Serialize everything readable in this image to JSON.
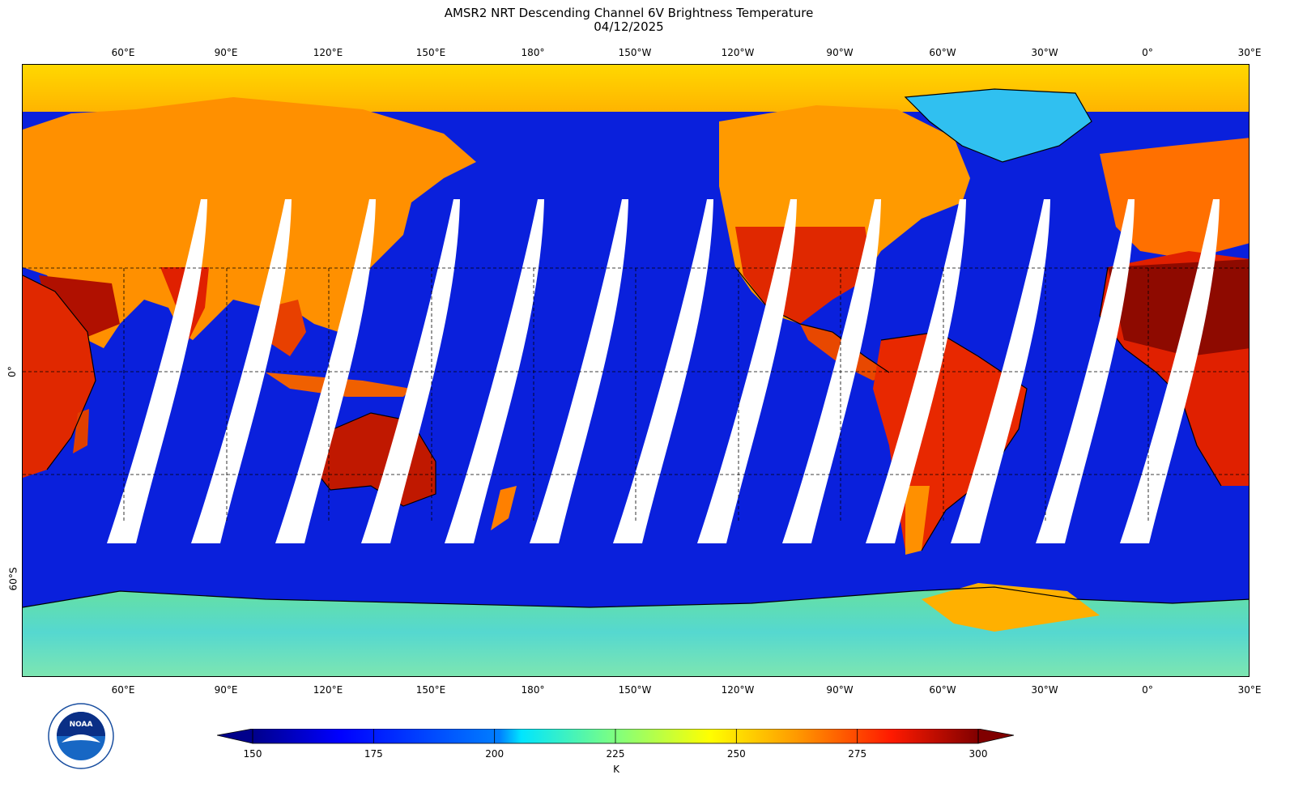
{
  "title": {
    "line1": "AMSR2 NRT Descending Channel 6V Brightness Temperature",
    "line2": "04/12/2025"
  },
  "lon_ticks": [
    "60°E",
    "90°E",
    "120°E",
    "150°E",
    "180°",
    "150°W",
    "120°W",
    "90°W",
    "60°W",
    "30°W",
    "0°",
    "30°E"
  ],
  "lat_ticks": [
    "0°",
    "60°S"
  ],
  "colorbar": {
    "ticks": [
      "150",
      "175",
      "200",
      "225",
      "250",
      "275",
      "300"
    ],
    "unit": "K",
    "min": 150,
    "max": 300,
    "colors": [
      "#00008b",
      "#0000ff",
      "#007fff",
      "#00ffff",
      "#7fff7f",
      "#ffff00",
      "#ff7f00",
      "#ff0000",
      "#7f0000"
    ]
  },
  "map": {
    "ocean_color": "#0a1ee0",
    "land_hot_color": "#e31a00",
    "land_warm_color": "#ff9a00",
    "polar_color": "#ffc800",
    "antarctic_color": "#5fe0c8",
    "swath_gap_color": "#ffffff",
    "lon_range": [
      30,
      390
    ],
    "lat_range": [
      -90,
      90
    ]
  },
  "logo": {
    "name": "noaa-logo",
    "text": "NOAA"
  }
}
